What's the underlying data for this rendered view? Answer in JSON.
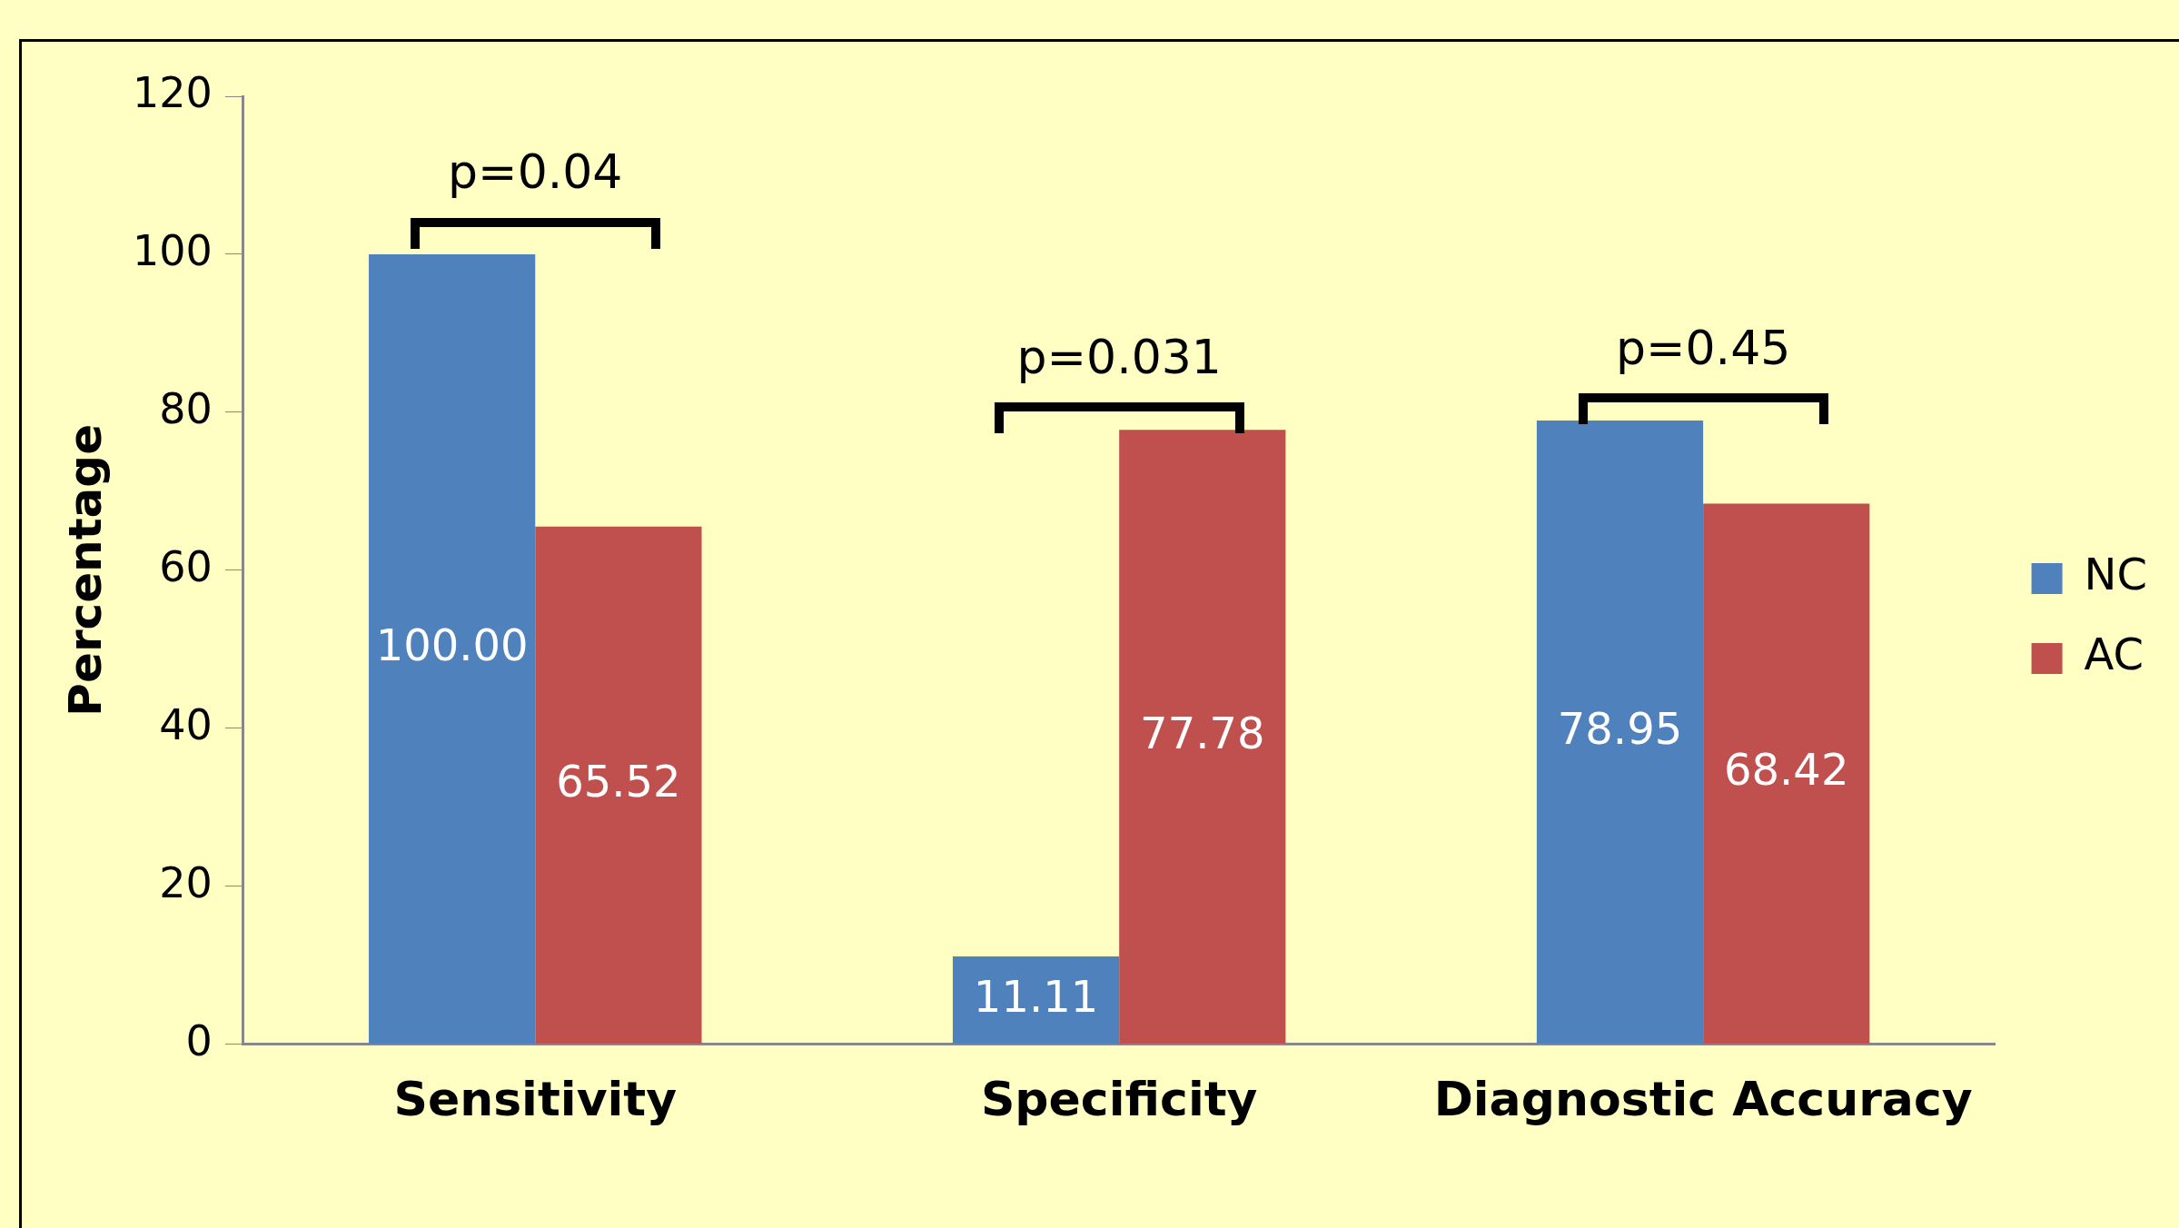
{
  "chart_data": {
    "type": "bar",
    "ylabel": "Percentage",
    "categories": [
      "Sensitivity",
      "Specificity",
      "Diagnostic Accuracy"
    ],
    "series": [
      {
        "name": "NC",
        "color": "#4f81bd",
        "values": [
          100,
          11.11,
          78.95
        ],
        "value_labels": [
          "100.00",
          "11.11",
          "78.95"
        ]
      },
      {
        "name": "AC",
        "color": "#c0504d",
        "values": [
          65.52,
          77.78,
          68.42
        ],
        "value_labels": [
          "65.52",
          "77.78",
          "68.42"
        ]
      }
    ],
    "ylim": [
      0,
      120
    ],
    "yticks": [
      0,
      20,
      40,
      60,
      80,
      100,
      120
    ],
    "grid": false,
    "legend": "right",
    "annotations": [
      "p=0.04",
      "p=0.031",
      "p=0.45"
    ]
  }
}
